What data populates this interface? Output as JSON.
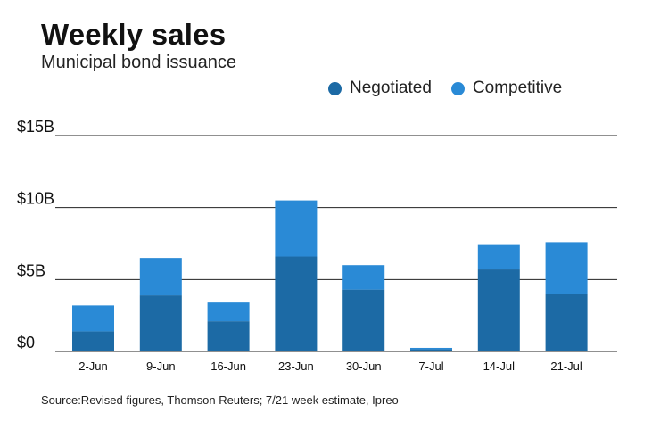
{
  "header": {
    "title": "Weekly sales",
    "subtitle": "Municipal bond issuance"
  },
  "footer": {
    "source": "Source:Revised figures, Thomson Reuters; 7/21 week estimate, Ipreo"
  },
  "colors": {
    "negotiated": "#1c6aa5",
    "competitive": "#2a8ad6",
    "gridline": "#222222",
    "text": "#111111"
  },
  "chart_data": {
    "type": "bar",
    "stacked": true,
    "title": "Weekly sales",
    "subtitle": "Municipal bond issuance",
    "categories": [
      "2-Jun",
      "9-Jun",
      "16-Jun",
      "23-Jun",
      "30-Jun",
      "7-Jul",
      "14-Jul",
      "21-Jul"
    ],
    "series": [
      {
        "name": "Negotiated",
        "values": [
          1.4,
          3.9,
          2.1,
          6.6,
          4.3,
          0.15,
          5.7,
          4.0
        ]
      },
      {
        "name": "Competitive",
        "values": [
          1.8,
          2.6,
          1.3,
          3.9,
          1.7,
          0.1,
          1.7,
          3.6
        ]
      }
    ],
    "yticks": [
      {
        "value": 0,
        "label": "$0"
      },
      {
        "value": 5,
        "label": "$5B"
      },
      {
        "value": 10,
        "label": "$10B"
      },
      {
        "value": 15,
        "label": "$15B"
      }
    ],
    "ylim": [
      0,
      15
    ],
    "grid": true,
    "legend_position": "top-right",
    "xlabel": "",
    "ylabel": ""
  }
}
